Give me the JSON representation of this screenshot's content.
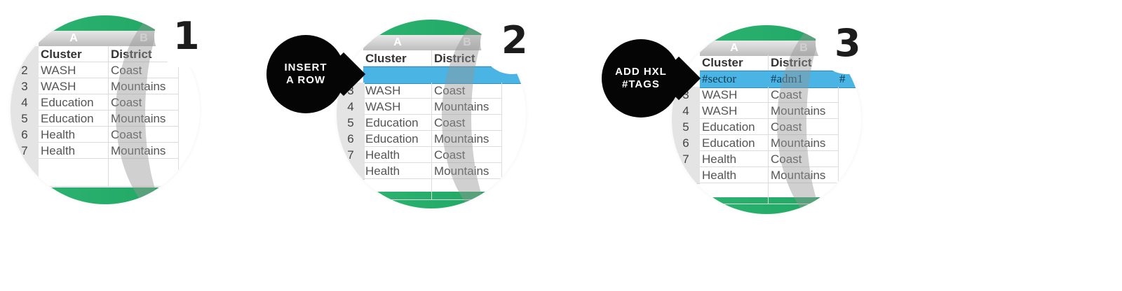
{
  "steps": [
    {
      "number": "1",
      "columns": [
        "A",
        "B"
      ],
      "header": [
        "Cluster",
        "District"
      ],
      "rows": [
        {
          "num": "2",
          "cluster": "WASH",
          "district": "Coast"
        },
        {
          "num": "3",
          "cluster": "WASH",
          "district": "Mountains"
        },
        {
          "num": "4",
          "cluster": "Education",
          "district": "Coast"
        },
        {
          "num": "5",
          "cluster": "Education",
          "district": "Mountains"
        },
        {
          "num": "6",
          "cluster": "Health",
          "district": "Coast"
        },
        {
          "num": "7",
          "cluster": "Health",
          "district": "Mountains"
        }
      ]
    },
    {
      "number": "2",
      "bubble_line1": "INSERT",
      "bubble_line2": "A ROW",
      "columns": [
        "A",
        "B"
      ],
      "header": [
        "Cluster",
        "District"
      ],
      "rows": [
        {
          "num": "3",
          "cluster": "WASH",
          "district": "Coast"
        },
        {
          "num": "4",
          "cluster": "WASH",
          "district": "Mountains"
        },
        {
          "num": "5",
          "cluster": "Education",
          "district": "Coast"
        },
        {
          "num": "6",
          "cluster": "Education",
          "district": "Mountains"
        },
        {
          "num": "7",
          "cluster": "Health",
          "district": "Coast"
        },
        {
          "num": "",
          "cluster": "Health",
          "district": "Mountains"
        }
      ]
    },
    {
      "number": "3",
      "bubble_line1": "ADD HXL",
      "bubble_line2": "#TAGS",
      "columns": [
        "A",
        "B"
      ],
      "header": [
        "Cluster",
        "District"
      ],
      "tags": [
        "#sector",
        "#adm1",
        "#"
      ],
      "rows": [
        {
          "num": "3",
          "cluster": "WASH",
          "district": "Coast"
        },
        {
          "num": "4",
          "cluster": "WASH",
          "district": "Mountains"
        },
        {
          "num": "5",
          "cluster": "Education",
          "district": "Coast"
        },
        {
          "num": "6",
          "cluster": "Education",
          "district": "Mountains"
        },
        {
          "num": "7",
          "cluster": "Health",
          "district": "Coast"
        },
        {
          "num": "",
          "cluster": "Health",
          "district": "Mountains"
        }
      ]
    }
  ]
}
